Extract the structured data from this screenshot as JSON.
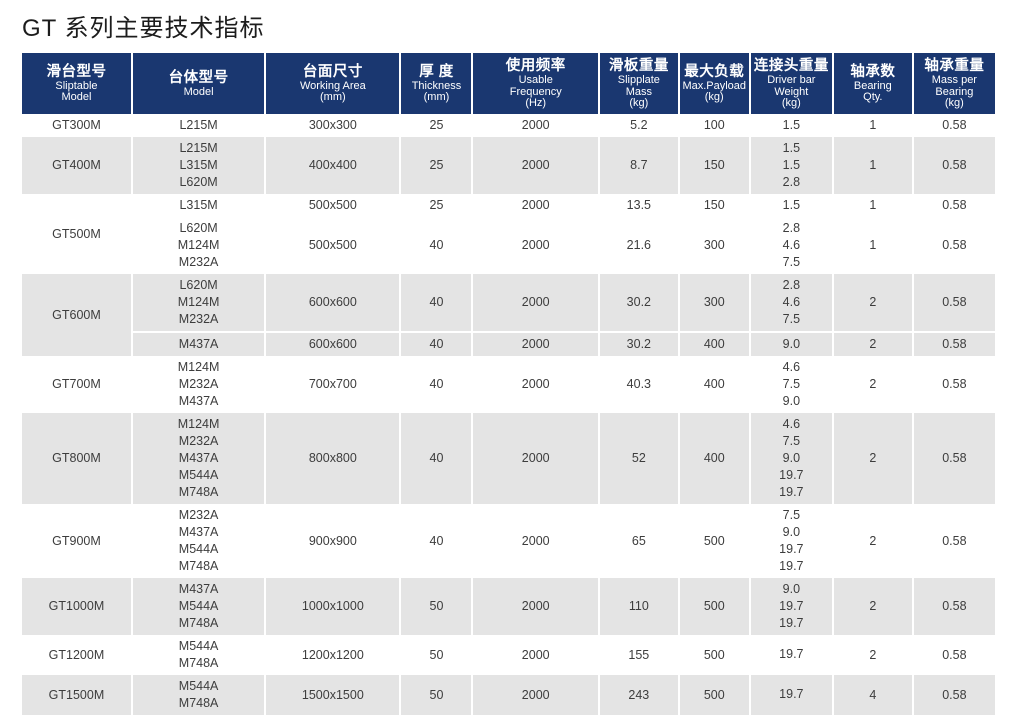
{
  "title": "GT 系列主要技术指标",
  "colors": {
    "header_bg": "#1A3770",
    "header_text": "#FFFFFF",
    "row_alt_bg": "#E4E4E4",
    "row_bg": "#FFFFFF",
    "body_text": "#3D3D3D"
  },
  "table": {
    "columns": [
      {
        "key": "sliptable-model",
        "zh": "滑台型号",
        "en": [
          "Sliptable",
          "Model"
        ]
      },
      {
        "key": "body-model",
        "zh": "台体型号",
        "en": [
          "Model"
        ]
      },
      {
        "key": "working-area",
        "zh": "台面尺寸",
        "en": [
          "Working Area",
          "(mm)"
        ]
      },
      {
        "key": "thickness",
        "zh": "厚 度",
        "en": [
          "Thickness",
          "(mm)"
        ]
      },
      {
        "key": "usable-frequency",
        "zh": "使用频率",
        "en": [
          "Usable",
          "Frequency",
          "(Hz)"
        ]
      },
      {
        "key": "slipplate-mass",
        "zh": "滑板重量",
        "en": [
          "Slipplate",
          "Mass",
          "(kg)"
        ]
      },
      {
        "key": "max-payload",
        "zh": "最大负载",
        "en": [
          "Max.Payload",
          "(kg)"
        ]
      },
      {
        "key": "driver-bar-weight",
        "zh": "连接头重量",
        "en": [
          "Driver bar",
          "Weight",
          "(kg)"
        ]
      },
      {
        "key": "bearing-qty",
        "zh": "轴承数",
        "en": [
          "Bearing",
          "Qty."
        ]
      },
      {
        "key": "mass-per-bearing",
        "zh": "轴承重量",
        "en": [
          "Mass per",
          "Bearing",
          "(kg)"
        ]
      }
    ],
    "groups": [
      {
        "sliptable": "GT300M",
        "shade": "white",
        "divider": false,
        "subrows": [
          {
            "models": [
              "L215M"
            ],
            "working_area": "300x300",
            "thickness": "25",
            "frequency": "2000",
            "slipplate_mass": "5.2",
            "max_payload": "100",
            "driver_bar_weights": [
              "1.5"
            ],
            "bearing_qty": "1",
            "mass_per_bearing": "0.58"
          }
        ]
      },
      {
        "sliptable": "GT400M",
        "shade": "gray",
        "divider": false,
        "subrows": [
          {
            "models": [
              "L215M",
              "L315M",
              "L620M"
            ],
            "working_area": "400x400",
            "thickness": "25",
            "frequency": "2000",
            "slipplate_mass": "8.7",
            "max_payload": "150",
            "driver_bar_weights": [
              "1.5",
              "1.5",
              "2.8"
            ],
            "bearing_qty": "1",
            "mass_per_bearing": "0.58"
          }
        ]
      },
      {
        "sliptable": "GT500M",
        "shade": "white",
        "divider": false,
        "subrows": [
          {
            "models": [
              "L315M"
            ],
            "working_area": "500x500",
            "thickness": "25",
            "frequency": "2000",
            "slipplate_mass": "13.5",
            "max_payload": "150",
            "driver_bar_weights": [
              "1.5"
            ],
            "bearing_qty": "1",
            "mass_per_bearing": "0.58"
          },
          {
            "models": [
              "L620M",
              "M124M",
              "M232A"
            ],
            "working_area": "500x500",
            "thickness": "40",
            "frequency": "2000",
            "slipplate_mass": "21.6",
            "max_payload": "300",
            "driver_bar_weights": [
              "2.8",
              "4.6",
              "7.5"
            ],
            "bearing_qty": "1",
            "mass_per_bearing": "0.58"
          }
        ]
      },
      {
        "sliptable": "GT600M",
        "shade": "gray",
        "divider": true,
        "subrows": [
          {
            "models": [
              "L620M",
              "M124M",
              "M232A"
            ],
            "working_area": "600x600",
            "thickness": "40",
            "frequency": "2000",
            "slipplate_mass": "30.2",
            "max_payload": "300",
            "driver_bar_weights": [
              "2.8",
              "4.6",
              "7.5"
            ],
            "bearing_qty": "2",
            "mass_per_bearing": "0.58"
          },
          {
            "models": [
              "M437A"
            ],
            "working_area": "600x600",
            "thickness": "40",
            "frequency": "2000",
            "slipplate_mass": "30.2",
            "max_payload": "400",
            "driver_bar_weights": [
              "9.0"
            ],
            "bearing_qty": "2",
            "mass_per_bearing": "0.58"
          }
        ]
      },
      {
        "sliptable": "GT700M",
        "shade": "white",
        "divider": false,
        "subrows": [
          {
            "models": [
              "M124M",
              "M232A",
              "M437A"
            ],
            "working_area": "700x700",
            "thickness": "40",
            "frequency": "2000",
            "slipplate_mass": "40.3",
            "max_payload": "400",
            "driver_bar_weights": [
              "4.6",
              "7.5",
              "9.0"
            ],
            "bearing_qty": "2",
            "mass_per_bearing": "0.58"
          }
        ]
      },
      {
        "sliptable": "GT800M",
        "shade": "gray",
        "divider": false,
        "subrows": [
          {
            "models": [
              "M124M",
              "M232A",
              "M437A",
              "M544A",
              "M748A"
            ],
            "working_area": "800x800",
            "thickness": "40",
            "frequency": "2000",
            "slipplate_mass": "52",
            "max_payload": "400",
            "driver_bar_weights": [
              "4.6",
              "7.5",
              "9.0",
              "19.7",
              "19.7"
            ],
            "bearing_qty": "2",
            "mass_per_bearing": "0.58"
          }
        ]
      },
      {
        "sliptable": "GT900M",
        "shade": "white",
        "divider": false,
        "subrows": [
          {
            "models": [
              "M232A",
              "M437A",
              "M544A",
              "M748A"
            ],
            "working_area": "900x900",
            "thickness": "40",
            "frequency": "2000",
            "slipplate_mass": "65",
            "max_payload": "500",
            "driver_bar_weights": [
              "7.5",
              "9.0",
              "19.7",
              "19.7"
            ],
            "bearing_qty": "2",
            "mass_per_bearing": "0.58"
          }
        ]
      },
      {
        "sliptable": "GT1000M",
        "shade": "gray",
        "divider": false,
        "subrows": [
          {
            "models": [
              "M437A",
              "M544A",
              "M748A"
            ],
            "working_area": "1000x1000",
            "thickness": "50",
            "frequency": "2000",
            "slipplate_mass": "110",
            "max_payload": "500",
            "driver_bar_weights": [
              "9.0",
              "19.7",
              "19.7"
            ],
            "bearing_qty": "2",
            "mass_per_bearing": "0.58"
          }
        ]
      },
      {
        "sliptable": "GT1200M",
        "shade": "white",
        "divider": false,
        "subrows": [
          {
            "models": [
              "M544A",
              "M748A"
            ],
            "working_area": "1200x1200",
            "thickness": "50",
            "frequency": "2000",
            "slipplate_mass": "155",
            "max_payload": "500",
            "driver_bar_weights": [
              "19.7"
            ],
            "bearing_qty": "2",
            "mass_per_bearing": "0.58"
          }
        ]
      },
      {
        "sliptable": "GT1500M",
        "shade": "gray",
        "divider": false,
        "subrows": [
          {
            "models": [
              "M544A",
              "M748A"
            ],
            "working_area": "1500x1500",
            "thickness": "50",
            "frequency": "2000",
            "slipplate_mass": "243",
            "max_payload": "500",
            "driver_bar_weights": [
              "19.7"
            ],
            "bearing_qty": "4",
            "mass_per_bearing": "0.58"
          }
        ]
      }
    ]
  }
}
